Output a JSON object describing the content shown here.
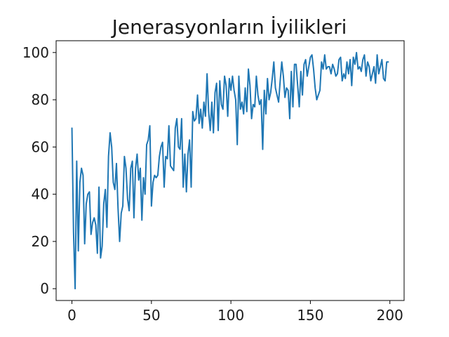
{
  "chart_data": {
    "type": "line",
    "title": "Jenerasyonların İyilikleri",
    "xlabel": "",
    "ylabel": "",
    "xlim": [
      -9.95,
      208.95
    ],
    "ylim": [
      -5,
      105
    ],
    "x_ticks": [
      0,
      50,
      100,
      150,
      200
    ],
    "y_ticks": [
      0,
      20,
      40,
      60,
      80,
      100
    ],
    "grid": false,
    "series": [
      {
        "color": "#1f77b4",
        "x": [
          0,
          1,
          2,
          3,
          4,
          5,
          6,
          7,
          8,
          9,
          10,
          11,
          12,
          13,
          14,
          15,
          16,
          17,
          18,
          19,
          20,
          21,
          22,
          23,
          24,
          25,
          26,
          27,
          28,
          29,
          30,
          31,
          32,
          33,
          34,
          35,
          36,
          37,
          38,
          39,
          40,
          41,
          42,
          43,
          44,
          45,
          46,
          47,
          48,
          49,
          50,
          51,
          52,
          53,
          54,
          55,
          56,
          57,
          58,
          59,
          60,
          61,
          62,
          63,
          64,
          65,
          66,
          67,
          68,
          69,
          70,
          71,
          72,
          73,
          74,
          75,
          76,
          77,
          78,
          79,
          80,
          81,
          82,
          83,
          84,
          85,
          86,
          87,
          88,
          89,
          90,
          91,
          92,
          93,
          94,
          95,
          96,
          97,
          98,
          99,
          100,
          101,
          102,
          103,
          104,
          105,
          106,
          107,
          108,
          109,
          110,
          111,
          112,
          113,
          114,
          115,
          116,
          117,
          118,
          119,
          120,
          121,
          122,
          123,
          124,
          125,
          126,
          127,
          128,
          129,
          130,
          131,
          132,
          133,
          134,
          135,
          136,
          137,
          138,
          139,
          140,
          141,
          142,
          143,
          144,
          145,
          146,
          147,
          148,
          149,
          150,
          151,
          152,
          153,
          154,
          155,
          156,
          157,
          158,
          159,
          160,
          161,
          162,
          163,
          164,
          165,
          166,
          167,
          168,
          169,
          170,
          171,
          172,
          173,
          174,
          175,
          176,
          177,
          178,
          179,
          180,
          181,
          182,
          183,
          184,
          185,
          186,
          187,
          188,
          189,
          190,
          191,
          192,
          193,
          194,
          195,
          196,
          197,
          198,
          199
        ],
        "y": [
          68,
          24,
          0,
          54,
          16,
          45,
          51,
          48,
          19,
          36,
          40,
          41,
          23,
          28,
          30,
          27,
          15,
          43,
          13,
          18,
          36,
          42,
          26,
          56,
          66,
          60,
          45,
          42,
          53,
          34,
          20,
          32,
          35,
          56,
          51,
          38,
          33,
          51,
          54,
          30,
          51,
          57,
          46,
          51,
          29,
          47,
          40,
          61,
          63,
          69,
          35,
          45,
          48,
          47,
          48,
          56,
          60,
          62,
          43,
          56,
          55,
          69,
          52,
          51,
          50,
          68,
          72,
          60,
          59,
          72,
          43,
          57,
          41,
          57,
          63,
          43,
          75,
          71,
          72,
          82,
          70,
          76,
          68,
          79,
          73,
          91,
          75,
          67,
          79,
          66,
          83,
          87,
          67,
          88,
          78,
          76,
          90,
          86,
          73,
          89,
          84,
          90,
          84,
          80,
          61,
          90,
          76,
          79,
          74,
          85,
          75,
          93,
          86,
          72,
          78,
          77,
          90,
          82,
          78,
          80,
          59,
          84,
          74,
          89,
          80,
          83,
          89,
          96,
          85,
          82,
          79,
          88,
          96,
          90,
          81,
          85,
          84,
          72,
          92,
          77,
          95,
          95,
          86,
          77,
          92,
          82,
          95,
          97,
          90,
          94,
          98,
          99,
          93,
          85,
          80,
          82,
          84,
          96,
          93,
          99,
          93,
          94,
          94,
          91,
          95,
          93,
          90,
          91,
          97,
          98,
          88,
          91,
          89,
          96,
          91,
          97,
          86,
          98,
          95,
          100,
          93,
          94,
          92,
          97,
          99,
          90,
          96,
          94,
          88,
          91,
          94,
          87,
          99,
          91,
          94,
          97,
          89,
          88,
          96,
          96
        ]
      }
    ]
  }
}
